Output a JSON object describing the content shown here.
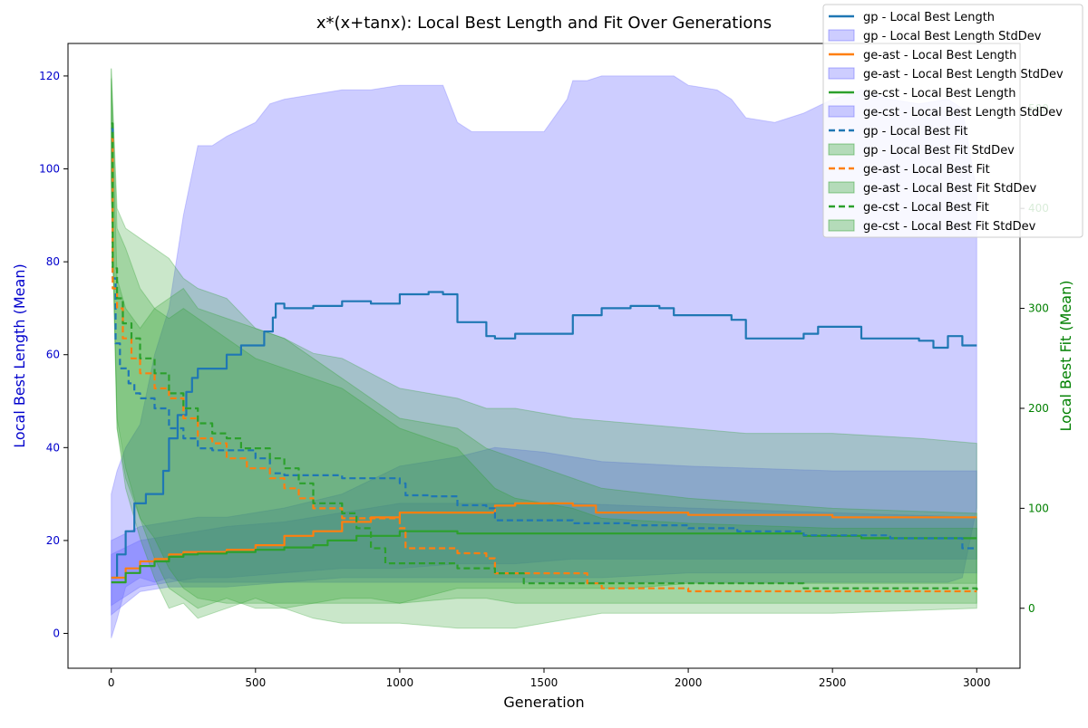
{
  "chart_data": {
    "type": "line",
    "title": "x*(x+tanx): Local Best Length and Fit Over Generations",
    "xlabel": "Generation",
    "ylabel_left": "Local Best Length (Mean)",
    "ylabel_right": "Local Best Fit (Mean)",
    "xlim": [
      -150,
      3150
    ],
    "ylim_left": [
      -7.5,
      127
    ],
    "ylim_right": [
      -60,
      565
    ],
    "xticks": [
      0,
      500,
      1000,
      1500,
      2000,
      2500,
      3000
    ],
    "yticks_left": [
      0,
      20,
      40,
      60,
      80,
      100,
      120
    ],
    "yticks_right": [
      0,
      100,
      200,
      300,
      400,
      500
    ],
    "grid": false,
    "legend_position": "top-right",
    "colors": {
      "gp": "#1f77b4",
      "ge-ast": "#ff7f0e",
      "ge-cst": "#2ca02c",
      "length_band": "#6666ff",
      "fit_band": "#2ca02c",
      "left_axis": "#0000cc",
      "right_axis": "#008000"
    },
    "legend": [
      {
        "label": "gp - Local Best Length",
        "kind": "line",
        "color": "#1f77b4"
      },
      {
        "label": "gp - Local Best Length StdDev",
        "kind": "band",
        "color": "#6666ff"
      },
      {
        "label": "ge-ast - Local Best Length",
        "kind": "line",
        "color": "#ff7f0e"
      },
      {
        "label": "ge-ast - Local Best Length StdDev",
        "kind": "band",
        "color": "#6666ff"
      },
      {
        "label": "ge-cst - Local Best Length",
        "kind": "line",
        "color": "#2ca02c"
      },
      {
        "label": "ge-cst - Local Best Length StdDev",
        "kind": "band",
        "color": "#6666ff"
      },
      {
        "label": "gp - Local Best Fit",
        "kind": "dash",
        "color": "#1f77b4"
      },
      {
        "label": "gp - Local Best Fit StdDev",
        "kind": "band",
        "color": "#2ca02c"
      },
      {
        "label": "ge-ast - Local Best Fit",
        "kind": "dash",
        "color": "#ff7f0e"
      },
      {
        "label": "ge-ast - Local Best Fit StdDev",
        "kind": "band",
        "color": "#2ca02c"
      },
      {
        "label": "ge-cst - Local Best Fit",
        "kind": "dash",
        "color": "#2ca02c"
      },
      {
        "label": "ge-cst - Local Best Fit StdDev",
        "kind": "band",
        "color": "#2ca02c"
      }
    ],
    "series": [
      {
        "name": "gp - Local Best Length",
        "axis": "left",
        "style": "solid",
        "color": "#1f77b4",
        "x": [
          0,
          20,
          50,
          80,
          120,
          150,
          180,
          200,
          230,
          260,
          280,
          300,
          350,
          400,
          450,
          500,
          530,
          560,
          570,
          600,
          700,
          800,
          900,
          1000,
          1100,
          1150,
          1200,
          1250,
          1300,
          1330,
          1400,
          1500,
          1600,
          1650,
          1700,
          1800,
          1900,
          1950,
          2000,
          2100,
          2150,
          2200,
          2300,
          2400,
          2450,
          2600,
          2700,
          2800,
          2850,
          2900,
          2950,
          3000
        ],
        "y": [
          12,
          17,
          22,
          28,
          30,
          30,
          35,
          42,
          47,
          52,
          55,
          57,
          57,
          60,
          62,
          62,
          65,
          68,
          71,
          70,
          70.5,
          71.5,
          71,
          73,
          73.5,
          73,
          67,
          67,
          64,
          63.5,
          64.5,
          64.5,
          68.5,
          68.5,
          70,
          70.5,
          70,
          68.5,
          68.5,
          68.5,
          67.5,
          63.5,
          63.5,
          64.5,
          66,
          63.5,
          63.5,
          63,
          61.5,
          64,
          62,
          62
        ]
      },
      {
        "name": "ge-ast - Local Best Length",
        "axis": "left",
        "style": "solid",
        "color": "#ff7f0e",
        "x": [
          0,
          50,
          100,
          150,
          200,
          250,
          300,
          400,
          500,
          600,
          700,
          800,
          900,
          1000,
          1100,
          1200,
          1330,
          1400,
          1600,
          1680,
          1700,
          2000,
          2500,
          3000
        ],
        "y": [
          12,
          14,
          15.5,
          16,
          17,
          17.5,
          17.5,
          18,
          19,
          21,
          22,
          24,
          25,
          26,
          26,
          26,
          27.5,
          28,
          27.5,
          26,
          26,
          25.5,
          25,
          25
        ]
      },
      {
        "name": "ge-cst - Local Best Length",
        "axis": "left",
        "style": "solid",
        "color": "#2ca02c",
        "x": [
          0,
          50,
          100,
          150,
          200,
          250,
          300,
          400,
          500,
          600,
          700,
          750,
          850,
          1000,
          1200,
          1400,
          1600,
          1800,
          2000,
          2300,
          2400,
          2600,
          2800,
          3000
        ],
        "y": [
          11,
          13,
          14.5,
          15.5,
          16.5,
          17,
          17.2,
          17.5,
          18,
          18.5,
          19,
          20,
          21,
          22,
          21.5,
          21.5,
          21.5,
          21.5,
          21.5,
          21.5,
          21,
          20.5,
          20.5,
          20.5
        ]
      },
      {
        "name": "gp - Local Best Fit",
        "axis": "right",
        "style": "dashed",
        "color": "#1f77b4",
        "x": [
          0,
          5,
          15,
          30,
          60,
          80,
          100,
          150,
          200,
          250,
          300,
          350,
          400,
          500,
          550,
          600,
          800,
          1000,
          1020,
          1100,
          1200,
          1300,
          1330,
          1400,
          1600,
          1800,
          2000,
          2100,
          2170,
          2200,
          2400,
          2500,
          2600,
          2700,
          2800,
          2950,
          3000
        ],
        "y": [
          480,
          330,
          265,
          240,
          225,
          215,
          210,
          200,
          180,
          170,
          160,
          158,
          158,
          150,
          135,
          133,
          130,
          125,
          113,
          112,
          103,
          100,
          88,
          88,
          85,
          83,
          80,
          80,
          77,
          77,
          73,
          73,
          73,
          70,
          70,
          60,
          60
        ]
      },
      {
        "name": "ge-ast - Local Best Fit",
        "axis": "right",
        "style": "dashed",
        "color": "#ff7f0e",
        "x": [
          0,
          5,
          20,
          40,
          70,
          100,
          150,
          200,
          250,
          300,
          350,
          400,
          470,
          550,
          600,
          650,
          700,
          800,
          1000,
          1020,
          1200,
          1300,
          1330,
          1400,
          1600,
          1650,
          1700,
          2000,
          2300,
          2600,
          2900,
          3000
        ],
        "y": [
          470,
          320,
          300,
          270,
          250,
          235,
          220,
          210,
          190,
          170,
          165,
          150,
          140,
          130,
          120,
          110,
          100,
          90,
          80,
          60,
          55,
          50,
          35,
          35,
          35,
          25,
          20,
          17,
          17,
          17,
          17,
          17
        ]
      },
      {
        "name": "ge-cst - Local Best Fit",
        "axis": "right",
        "style": "dashed",
        "color": "#2ca02c",
        "x": [
          0,
          5,
          20,
          40,
          70,
          100,
          150,
          200,
          250,
          300,
          350,
          400,
          450,
          500,
          550,
          600,
          650,
          700,
          800,
          850,
          900,
          950,
          1000,
          1200,
          1300,
          1330,
          1400,
          1430,
          1500,
          1700,
          2000,
          2300,
          2400,
          2600,
          2800,
          3000
        ],
        "y": [
          485,
          340,
          310,
          285,
          270,
          250,
          235,
          215,
          200,
          185,
          175,
          170,
          160,
          160,
          150,
          140,
          125,
          105,
          95,
          80,
          60,
          45,
          45,
          40,
          40,
          35,
          35,
          25,
          25,
          25,
          25,
          25,
          20,
          20,
          20,
          18
        ]
      }
    ],
    "bands": [
      {
        "name": "gp - Local Best Length StdDev",
        "axis": "left",
        "color": "#6666ff",
        "x": [
          0,
          20,
          50,
          100,
          150,
          200,
          250,
          300,
          350,
          400,
          500,
          550,
          600,
          700,
          800,
          900,
          1000,
          1100,
          1150,
          1200,
          1250,
          1300,
          1400,
          1500,
          1580,
          1600,
          1650,
          1700,
          1800,
          1900,
          1950,
          2000,
          2100,
          2150,
          2200,
          2300,
          2400,
          2500,
          2600,
          2700,
          2800,
          2900,
          2950,
          3000
        ],
        "lo": [
          -1,
          3,
          10,
          12,
          11,
          12,
          11,
          11,
          11,
          11,
          11,
          11,
          11,
          11,
          11,
          11,
          11,
          11,
          11,
          11,
          11,
          11,
          11,
          11,
          11,
          11,
          11,
          11,
          11,
          11,
          11,
          11,
          11,
          11,
          11,
          11,
          11,
          11,
          11,
          11,
          11,
          11,
          12,
          27
        ],
        "hi": [
          30,
          35,
          40,
          45,
          60,
          70,
          90,
          105,
          105,
          107,
          110,
          114,
          115,
          116,
          117,
          117,
          118,
          118,
          118,
          110,
          108,
          108,
          108,
          108,
          115,
          119,
          119,
          120,
          120,
          120,
          120,
          118,
          117,
          115,
          111,
          110,
          112,
          115,
          117,
          115,
          114,
          115,
          113,
          95
        ]
      },
      {
        "name": "ge-ast - Local Best Length StdDev",
        "axis": "left",
        "color": "#6666ff",
        "x": [
          0,
          100,
          200,
          300,
          400,
          600,
          800,
          1000,
          1200,
          1330,
          1500,
          1700,
          2000,
          2500,
          3000
        ],
        "lo": [
          4,
          9,
          10,
          10,
          10,
          11,
          12,
          12,
          12,
          12,
          12,
          12,
          13,
          13,
          13
        ],
        "hi": [
          20,
          23,
          24,
          25,
          25,
          27,
          30,
          36,
          38,
          40,
          39,
          37,
          36,
          35,
          35
        ]
      },
      {
        "name": "ge-cst - Local Best Length StdDev",
        "axis": "left",
        "color": "#6666ff",
        "x": [
          0,
          100,
          200,
          300,
          400,
          600,
          800,
          1000,
          1200,
          1400,
          1600,
          2000,
          2500,
          3000
        ],
        "lo": [
          6,
          10,
          11,
          12,
          12,
          13,
          14,
          14,
          15,
          15,
          16,
          16,
          16,
          16
        ],
        "hi": [
          17,
          20,
          21,
          22,
          23,
          24,
          26,
          28,
          28,
          28,
          28,
          27,
          26,
          25
        ]
      },
      {
        "name": "gp - Local Best Fit StdDev",
        "axis": "right",
        "color": "#2ca02c",
        "x": [
          0,
          20,
          50,
          100,
          150,
          200,
          250,
          300,
          400,
          500,
          600,
          700,
          800,
          1000,
          1200,
          1300,
          1400,
          1600,
          1800,
          2000,
          2200,
          2500,
          2800,
          3000
        ],
        "lo": [
          430,
          180,
          130,
          90,
          70,
          40,
          20,
          10,
          5,
          5,
          5,
          5,
          5,
          5,
          20,
          20,
          20,
          20,
          20,
          25,
          25,
          25,
          25,
          25
        ],
        "hi": [
          530,
          330,
          300,
          280,
          300,
          310,
          320,
          300,
          290,
          280,
          270,
          255,
          250,
          220,
          210,
          200,
          200,
          190,
          185,
          180,
          175,
          175,
          170,
          165
        ]
      },
      {
        "name": "ge-ast - Local Best Fit StdDev",
        "axis": "right",
        "color": "#2ca02c",
        "x": [
          0,
          20,
          50,
          100,
          150,
          200,
          250,
          300,
          400,
          500,
          600,
          700,
          800,
          1000,
          1200,
          1330,
          1400,
          1600,
          1700,
          2000,
          2500,
          3000
        ],
        "lo": [
          410,
          180,
          120,
          70,
          30,
          0,
          5,
          -10,
          0,
          10,
          0,
          -10,
          -15,
          -15,
          -20,
          -20,
          -20,
          -10,
          -5,
          -5,
          -5,
          0
        ],
        "hi": [
          540,
          380,
          360,
          320,
          300,
          290,
          300,
          290,
          270,
          250,
          240,
          230,
          220,
          180,
          160,
          120,
          110,
          100,
          90,
          85,
          80,
          80
        ]
      },
      {
        "name": "ge-cst - Local Best Fit StdDev",
        "axis": "right",
        "color": "#2ca02c",
        "x": [
          0,
          20,
          50,
          100,
          150,
          200,
          250,
          300,
          400,
          500,
          600,
          700,
          800,
          900,
          1000,
          1200,
          1300,
          1400,
          1500,
          1700,
          2000,
          2500,
          3000
        ],
        "lo": [
          430,
          190,
          140,
          90,
          50,
          20,
          10,
          0,
          10,
          0,
          0,
          5,
          10,
          10,
          5,
          10,
          10,
          5,
          5,
          5,
          5,
          5,
          5
        ],
        "hi": [
          540,
          400,
          380,
          370,
          360,
          350,
          330,
          320,
          310,
          280,
          270,
          250,
          230,
          210,
          190,
          180,
          160,
          150,
          140,
          120,
          110,
          100,
          95
        ]
      }
    ]
  }
}
